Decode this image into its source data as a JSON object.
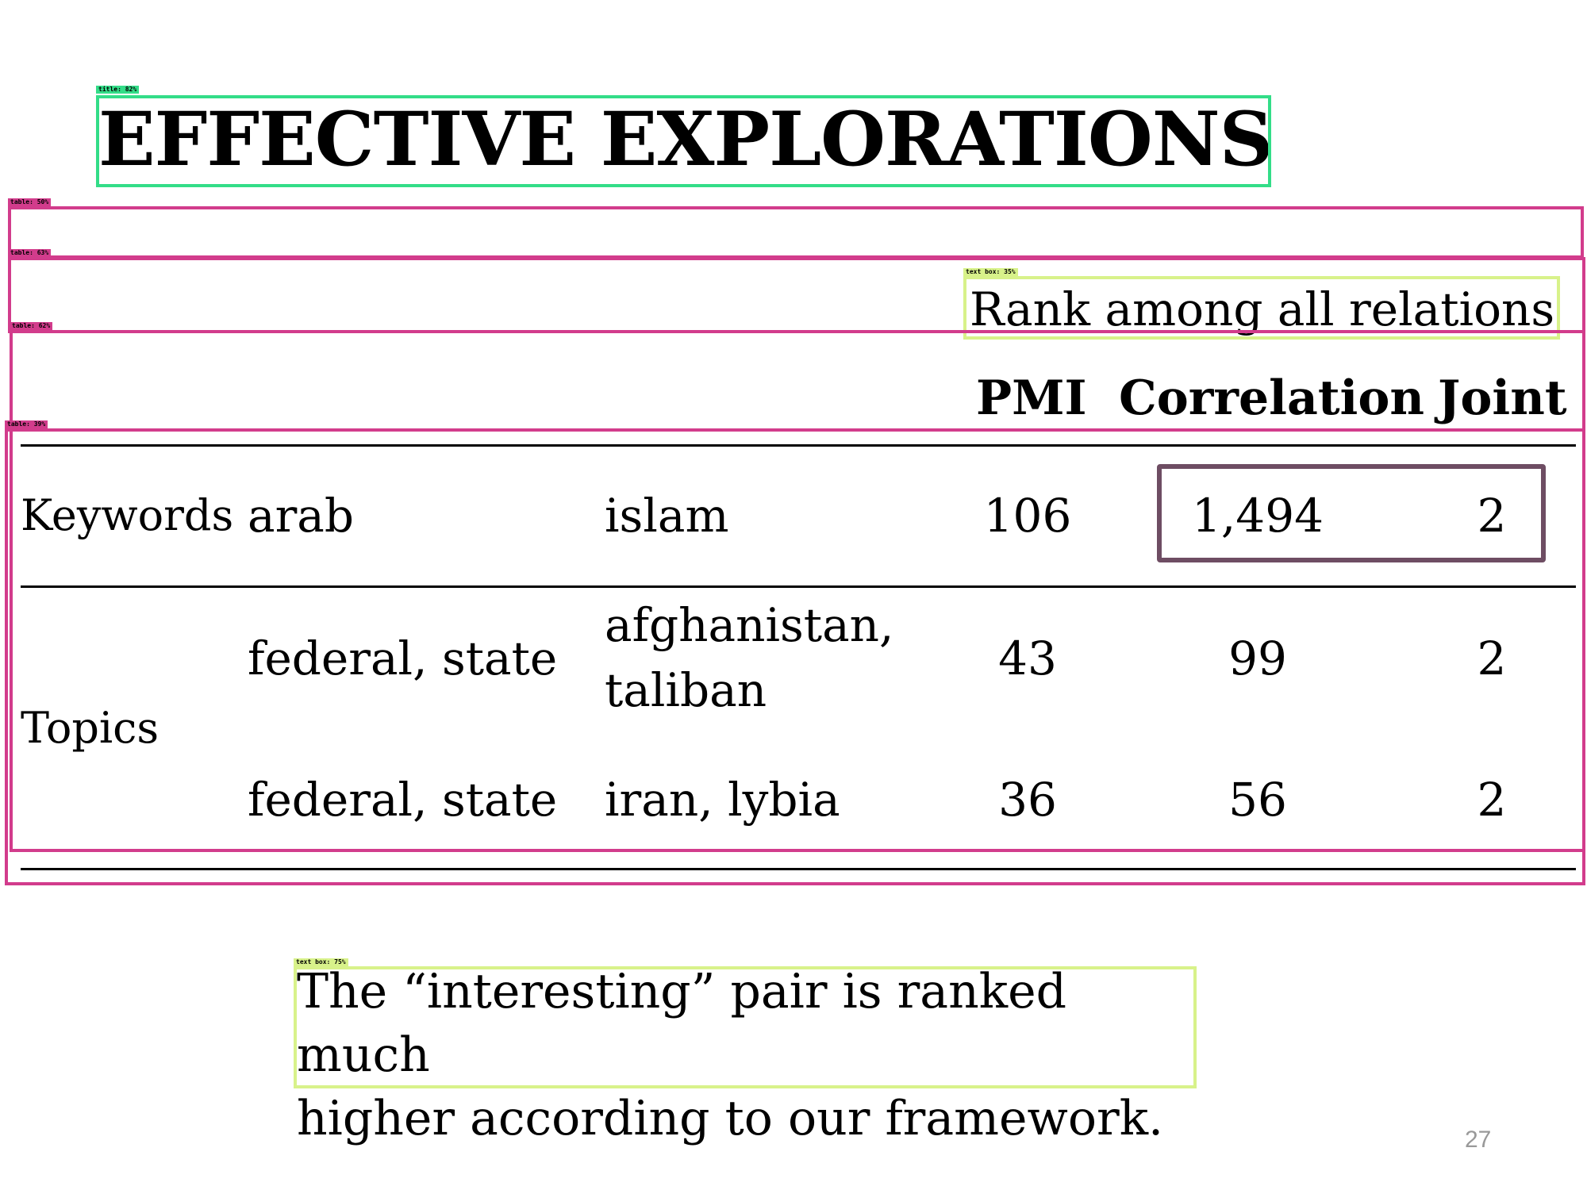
{
  "title": "EFFECTIVE EXPLORATIONS",
  "table": {
    "group_header": "Rank among all relations",
    "headers": {
      "pmi": "PMI",
      "correlation": "Correlation",
      "joint": "Joint"
    },
    "rows": [
      {
        "group": "Keywords",
        "left": "arab",
        "right": "islam",
        "pmi": "106",
        "correlation": "1,494",
        "joint": "2"
      },
      {
        "group": "",
        "left": "federal, state",
        "right_line1": "afghanistan,",
        "right_line2": "taliban",
        "pmi": "43",
        "correlation": "99",
        "joint": "2"
      },
      {
        "group": "",
        "left": "federal, state",
        "right": "iran, lybia",
        "pmi": "36",
        "correlation": "56",
        "joint": "2"
      }
    ],
    "topics_label": "Topics"
  },
  "caption": {
    "line1": "The “interesting” pair is ranked much",
    "line2": "higher according to our framework."
  },
  "page_number": "27",
  "detections": [
    {
      "label": "title: 82%"
    },
    {
      "label": "table: 50%"
    },
    {
      "label": "table: 63%"
    },
    {
      "label": "text box: 35%"
    },
    {
      "label": "table: 62%"
    },
    {
      "label": "table: 39%"
    },
    {
      "label": "text box: 75%"
    }
  ],
  "colors": {
    "table_box": "#d23c8c",
    "title_box": "#33dd88",
    "text_box": "#d8f28a",
    "highlight": "#6e4d63"
  }
}
